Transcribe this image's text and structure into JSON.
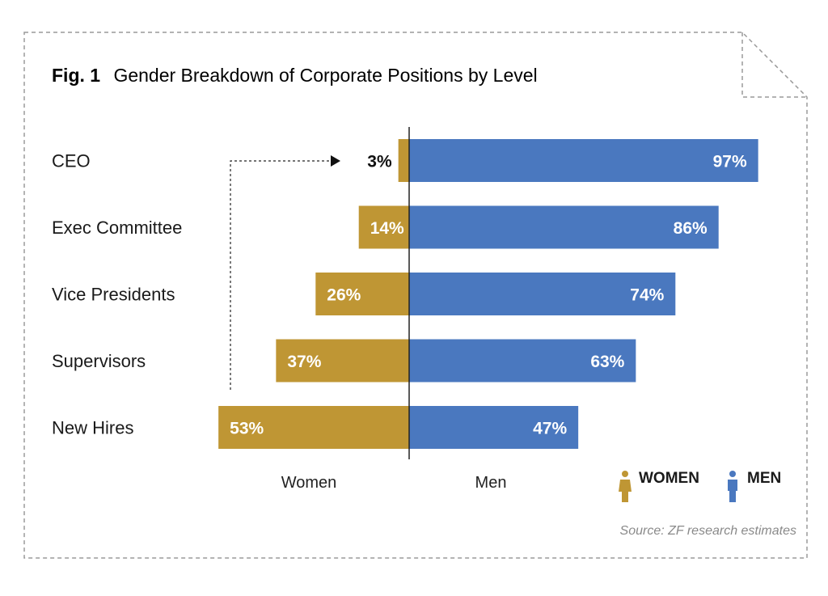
{
  "chart_data": {
    "type": "bar",
    "title_prefix": "Fig. 1",
    "title": "Gender Breakdown of Corporate Positions by Level",
    "categories": [
      "CEO",
      "Exec Committee",
      "Vice Presidents",
      "Supervisors",
      "New Hires"
    ],
    "series": [
      {
        "name": "WOMEN",
        "values": [
          3,
          14,
          26,
          37,
          53
        ],
        "value_labels": [
          "3%",
          "14%",
          "26%",
          "37%",
          "53%"
        ],
        "color": "#bf9634"
      },
      {
        "name": "MEN",
        "values": [
          97,
          86,
          74,
          63,
          47
        ],
        "value_labels": [
          "97%",
          "86%",
          "74%",
          "63%",
          "47%"
        ],
        "color": "#4a78bf"
      }
    ],
    "xlabel_left": "Women",
    "xlabel_right": "Men",
    "xlim": [
      -100,
      100
    ],
    "grid": false,
    "legend_placement": "bottom-right",
    "source": "Source: ZF research estimates"
  }
}
